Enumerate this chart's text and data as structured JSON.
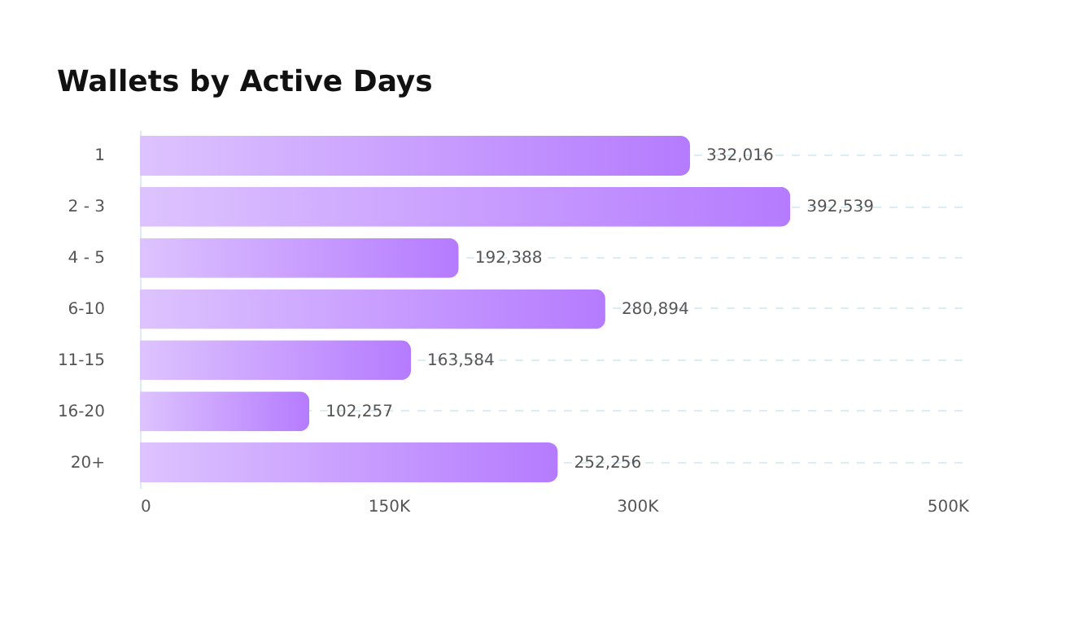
{
  "chart_data": {
    "type": "bar",
    "orientation": "horizontal",
    "title": "Wallets by Active Days",
    "categories": [
      "1",
      "2 - 3",
      "4 - 5",
      "6-10",
      "11-15",
      "16-20",
      "20+"
    ],
    "values": [
      332016,
      392539,
      192388,
      280894,
      163584,
      102257,
      252256
    ],
    "color": "#b57bfe",
    "xlim": [
      0,
      500000
    ],
    "xticks": [
      0,
      {
        "value": 150000,
        "label": "150K"
      },
      {
        "value": 300000,
        "label": "300K"
      },
      {
        "value": 500000,
        "label": "500K"
      }
    ],
    "value_labels": [
      "332,016",
      "392,539",
      "192,388",
      "280,894",
      "163,584",
      "102,257",
      "252,256"
    ],
    "grid": "y"
  }
}
